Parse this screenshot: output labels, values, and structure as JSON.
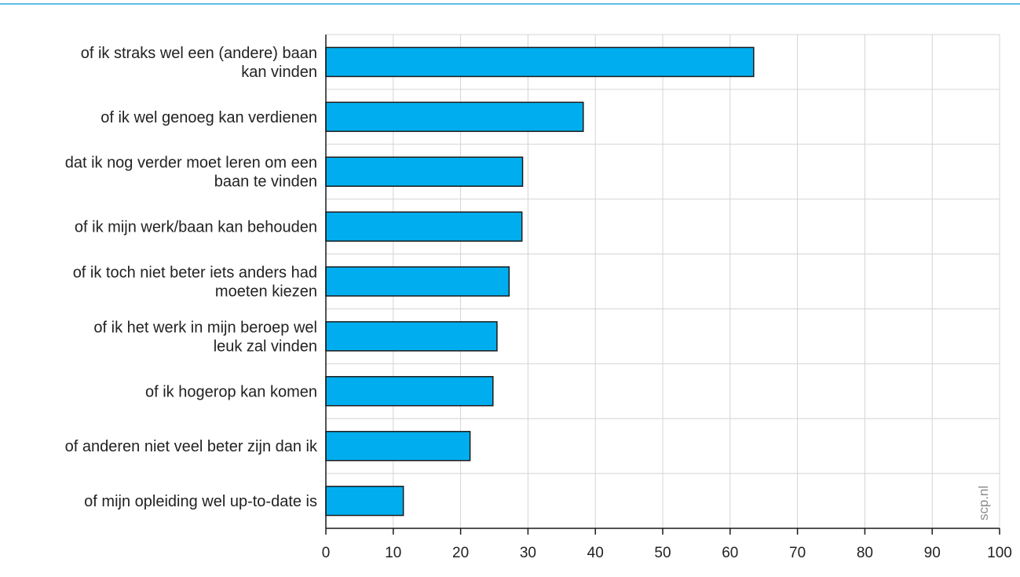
{
  "colors": {
    "bar_fill": "#00aeef",
    "bar_stroke": "#1a1a1a",
    "grid": "#d4d4d4",
    "axis": "#1a1a1a",
    "top_rule": "#2aa7e0",
    "source_text": "#8c8c8c"
  },
  "source": "scp.nl",
  "chart_data": {
    "type": "bar",
    "orientation": "horizontal",
    "title": "",
    "xlabel": "",
    "ylabel": "",
    "xlim": [
      0,
      100
    ],
    "xticks": [
      "0",
      "10",
      "20",
      "30",
      "40",
      "50",
      "60",
      "70",
      "80",
      "90",
      "100"
    ],
    "grid": true,
    "categories": [
      [
        "of ik straks wel een (andere) baan",
        "kan vinden"
      ],
      [
        "of ik wel genoeg kan verdienen"
      ],
      [
        "dat ik nog verder moet leren om een",
        "baan te vinden"
      ],
      [
        "of ik mijn werk/baan kan behouden"
      ],
      [
        "of ik toch niet beter iets anders had",
        "moeten kiezen"
      ],
      [
        "of ik het werk in mijn beroep wel",
        "leuk zal vinden"
      ],
      [
        "of ik hogerop kan komen"
      ],
      [
        "of anderen niet veel beter zijn dan ik"
      ],
      [
        "of mijn opleiding wel up-to-date is"
      ]
    ],
    "values": [
      63.5,
      38.2,
      29.2,
      29.1,
      27.2,
      25.4,
      24.8,
      21.4,
      11.5
    ]
  }
}
